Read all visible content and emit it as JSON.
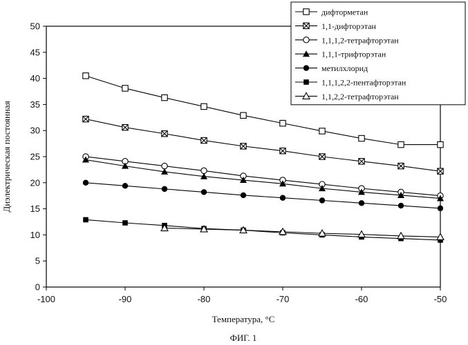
{
  "caption": "ФИГ. 1",
  "chart_data": {
    "type": "line",
    "xlabel": "Температура, °С",
    "ylabel": "Диэлектрическая постоянная",
    "xlim": [
      -100,
      -50
    ],
    "ylim": [
      0,
      50
    ],
    "x_ticks": [
      -100,
      -90,
      -80,
      -70,
      -60,
      -50
    ],
    "y_ticks": [
      0,
      5,
      10,
      15,
      20,
      25,
      30,
      35,
      40,
      45,
      50
    ],
    "grid": false,
    "legend_position": "top-right",
    "x": [
      -95,
      -90,
      -85,
      -80,
      -75,
      -70,
      -65,
      -60,
      -55,
      -50
    ],
    "series": [
      {
        "name": "дифторметан",
        "marker": "square-open",
        "values": [
          40.5,
          38.1,
          36.3,
          34.6,
          32.9,
          31.4,
          29.9,
          28.5,
          27.3,
          27.3
        ]
      },
      {
        "name": "1,1-дифторэтан",
        "marker": "square-cross",
        "values": [
          32.2,
          30.6,
          29.4,
          28.1,
          27.0,
          26.1,
          25.0,
          24.1,
          23.2,
          22.2
        ]
      },
      {
        "name": "1,1,1,2-тетрафторэтан",
        "marker": "circle-open",
        "values": [
          25.0,
          24.1,
          23.2,
          22.3,
          21.3,
          20.5,
          19.7,
          18.9,
          18.2,
          17.5
        ]
      },
      {
        "name": "1,1,1-трифторэтан",
        "marker": "triangle-filled",
        "values": [
          24.4,
          23.2,
          22.1,
          21.2,
          20.5,
          19.8,
          18.9,
          18.2,
          17.6,
          17.0
        ]
      },
      {
        "name": "метилхлорид",
        "marker": "circle-filled",
        "values": [
          20.0,
          19.4,
          18.8,
          18.2,
          17.6,
          17.1,
          16.6,
          16.1,
          15.6,
          15.1
        ]
      },
      {
        "name": "1,1,1,2,2-пентафторэтан",
        "marker": "square-filled",
        "values": [
          12.9,
          12.3,
          11.8,
          11.2,
          10.9,
          10.4,
          10.0,
          9.6,
          9.3,
          9.0
        ]
      },
      {
        "name": "1,1,2,2-тетрафторэтан",
        "marker": "triangle-open",
        "values": [
          null,
          null,
          11.3,
          11.1,
          10.9,
          10.6,
          10.3,
          10.1,
          9.8,
          9.6
        ]
      }
    ]
  }
}
